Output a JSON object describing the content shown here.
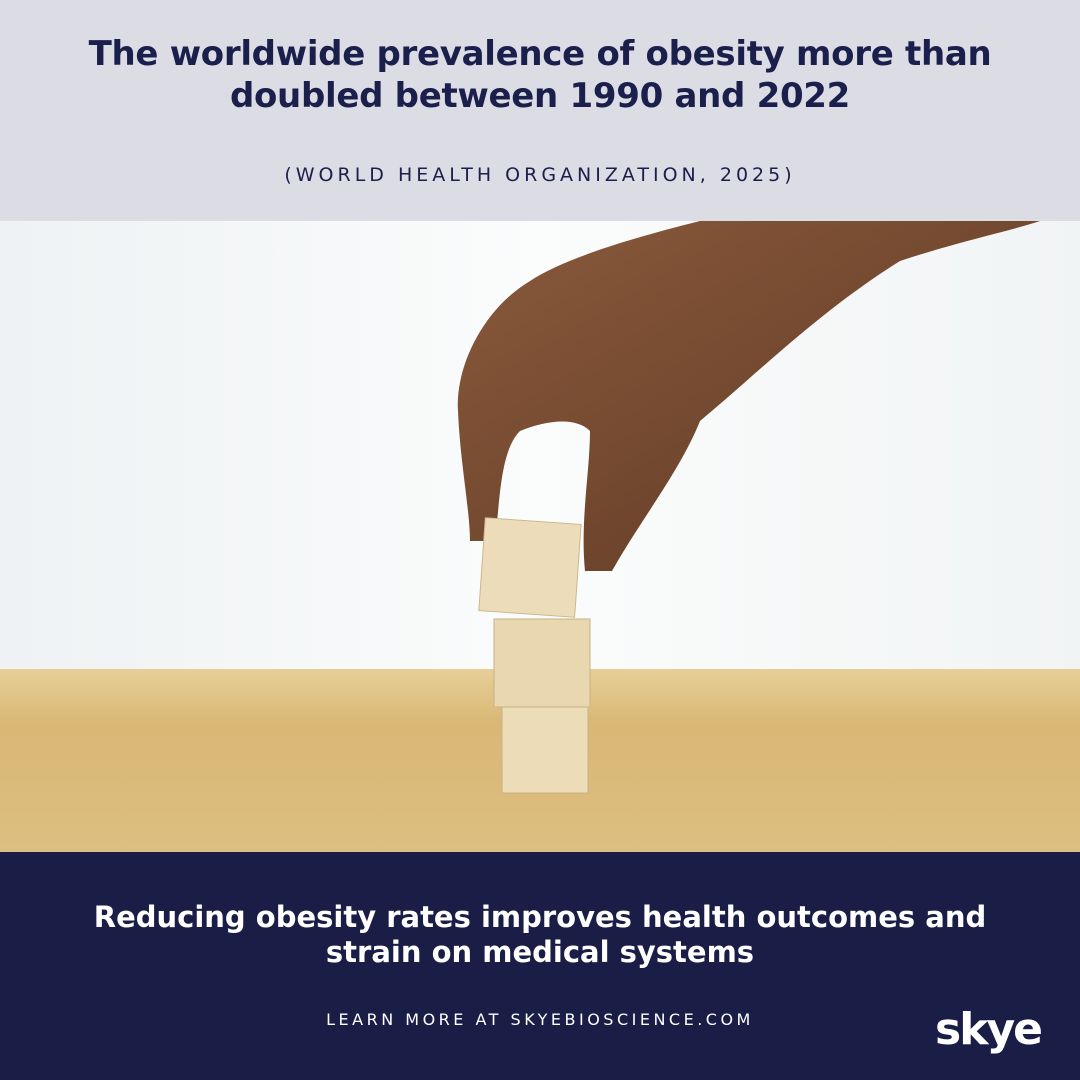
{
  "header": {
    "title": "The worldwide prevalence of obesity more than doubled between 1990 and 2022",
    "citation": "(WORLD HEALTH ORGANIZATION, 2025)"
  },
  "footer": {
    "message": "Reducing obesity rates improves health outcomes and strain on medical systems",
    "link": "LEARN MORE AT SKYEBIOSCIENCE.COM"
  },
  "logo": {
    "text": "skye"
  }
}
